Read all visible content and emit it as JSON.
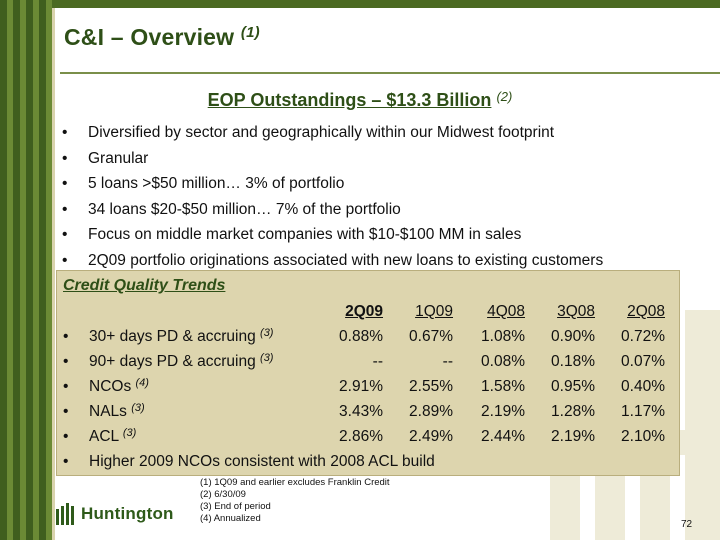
{
  "slide": {
    "title": "C&I – Overview",
    "title_note": "(1)",
    "subtitle": "EOP Outstandings – $13.3 Billion",
    "subtitle_note": "(2)",
    "bullets": [
      "Diversified by sector and geographically within our Midwest footprint",
      "Granular",
      "5 loans >$50 million… 3% of portfolio",
      "34 loans $20-$50 million… 7% of the portfolio",
      "Focus on middle market companies with $10-$100 MM in sales",
      "2Q09 portfolio originations associated with new loans to existing customers"
    ],
    "bullet_glyph": "•",
    "credit_quality": {
      "heading": "Credit Quality Trends",
      "columns": [
        "2Q09",
        "1Q09",
        "4Q08",
        "3Q08",
        "2Q08"
      ],
      "rows": [
        {
          "label": "30+ days PD & accruing",
          "note": "(3)",
          "values": [
            "0.88%",
            "0.67%",
            "1.08%",
            "0.90%",
            "0.72%"
          ]
        },
        {
          "label": "90+ days PD & accruing",
          "note": "(3)",
          "values": [
            "--",
            "--",
            "0.08%",
            "0.18%",
            "0.07%"
          ]
        },
        {
          "label": "NCOs",
          "note": "(4)",
          "values": [
            "2.91%",
            "2.55%",
            "1.58%",
            "0.95%",
            "0.40%"
          ]
        },
        {
          "label": "NALs",
          "note": "(3)",
          "values": [
            "3.43%",
            "2.89%",
            "2.19%",
            "1.28%",
            "1.17%"
          ]
        },
        {
          "label": "ACL",
          "note": "(3)",
          "values": [
            "2.86%",
            "2.49%",
            "2.44%",
            "2.19%",
            "2.10%"
          ]
        }
      ],
      "closing_bullet": "Higher 2009 NCOs consistent with 2008 ACL build"
    },
    "footnotes": [
      "(1)  1Q09 and earlier excludes Franklin Credit",
      "(2)  6/30/09",
      "(3)  End of period",
      "(4)  Annualized"
    ],
    "logo_text": "Huntington",
    "page_number": "72",
    "colors": {
      "brand_green": "#2e4f17",
      "box_fill": "#ddd5ae",
      "stripe_dark": "#3f5e1e",
      "stripe_light": "#6b8a35"
    }
  }
}
